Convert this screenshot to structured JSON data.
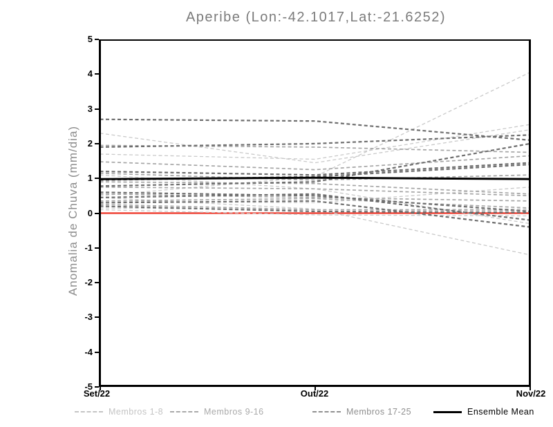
{
  "title": "Aperibe (Lon:-42.1017,Lat:-21.6252)",
  "chart_data": {
    "type": "line",
    "title": "Aperibe (Lon:-42.1017,Lat:-21.6252)",
    "ylabel": "Anomalia de Chuva (mm/dia)",
    "xlabel": "",
    "x_categories": [
      "Set/22",
      "Out/22",
      "Nov/22"
    ],
    "ylim": [
      -5,
      5
    ],
    "y_ticks": [
      5,
      4,
      3,
      2,
      1,
      0,
      -1,
      -2,
      -3,
      -4,
      -5
    ],
    "grid": false,
    "legend_position": "bottom",
    "zero_line": {
      "value": 0,
      "color": "#ef4337",
      "width": 2.4
    },
    "groups": [
      {
        "name": "Membros 1-8",
        "color": "#c9c9c9",
        "legend_color": "#c4c4c4",
        "line_width": 1.3,
        "members": [
          [
            2.3,
            1.45,
            2.4
          ],
          [
            1.7,
            1.55,
            2.55
          ],
          [
            1.1,
            0.7,
            -0.3
          ],
          [
            0.5,
            1.05,
            4.05
          ],
          [
            0.45,
            0.12,
            -1.2
          ],
          [
            0.35,
            0.3,
            0.75
          ],
          [
            0.15,
            0.1,
            0.12
          ],
          [
            0.1,
            -0.05,
            -0.08
          ]
        ]
      },
      {
        "name": "Membros 9-16",
        "color": "#a5a5a5",
        "legend_color": "#a9a9a9",
        "line_width": 1.7,
        "members": [
          [
            1.95,
            1.9,
            1.75
          ],
          [
            1.48,
            1.25,
            1.65
          ],
          [
            1.15,
            0.95,
            1.1
          ],
          [
            0.9,
            0.85,
            0.55
          ],
          [
            0.75,
            0.7,
            0.5
          ],
          [
            0.55,
            0.45,
            0.35
          ],
          [
            0.35,
            0.42,
            0.15
          ],
          [
            0.25,
            0.1,
            0.08
          ]
        ]
      },
      {
        "name": "Membros 17-25",
        "color": "#6e6e6e",
        "legend_color": "#8f8f8f",
        "line_width": 2.2,
        "members": [
          [
            2.7,
            2.65,
            2.1
          ],
          [
            1.9,
            2.0,
            2.25
          ],
          [
            1.2,
            1.1,
            1.45
          ],
          [
            0.95,
            1.05,
            1.4
          ],
          [
            0.78,
            0.9,
            2.0
          ],
          [
            0.6,
            0.5,
            0.05
          ],
          [
            0.45,
            0.55,
            -0.2
          ],
          [
            0.3,
            0.35,
            -0.4
          ],
          [
            0.2,
            0.05,
            0.02
          ]
        ]
      }
    ],
    "mean": {
      "name": "Ensemble Mean",
      "color": "#000000",
      "line_width": 3,
      "values": [
        0.98,
        1.02,
        0.98
      ]
    }
  }
}
